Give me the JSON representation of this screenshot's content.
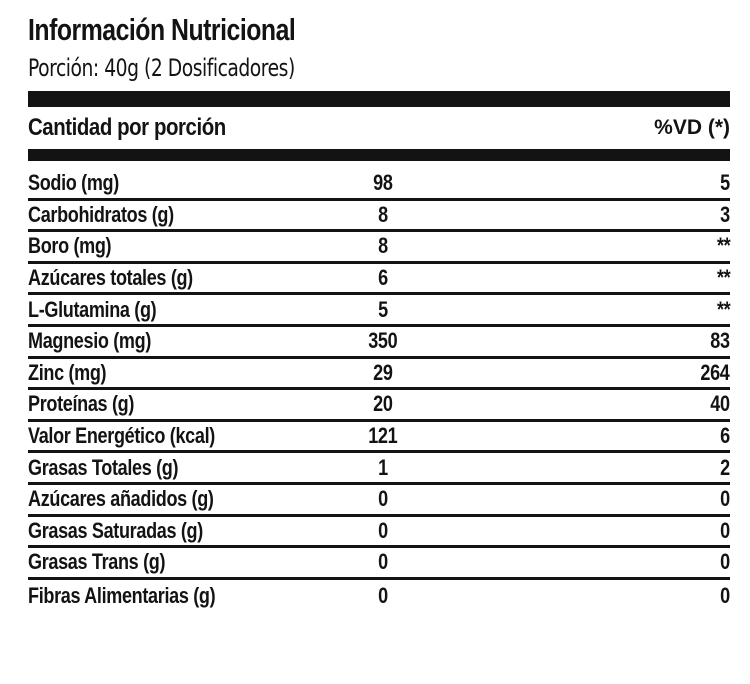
{
  "label": {
    "title": "Información Nutricional",
    "serving": "Porción: 40g (2 Dosificadores)",
    "colors": {
      "ink": "#131313",
      "background": "#ffffff"
    },
    "header": {
      "amount_column": "Cantidad por porción",
      "vd_column": "%VD (*)"
    },
    "rows": [
      {
        "nutrient": "Sodio (mg)",
        "amount": "98",
        "vd": "5"
      },
      {
        "nutrient": "Carbohidratos (g)",
        "amount": "8",
        "vd": "3"
      },
      {
        "nutrient": "Boro (mg)",
        "amount": "8",
        "vd": "**"
      },
      {
        "nutrient": "Azúcares totales (g)",
        "amount": "6",
        "vd": "**"
      },
      {
        "nutrient": "L-Glutamina (g)",
        "amount": "5",
        "vd": "**"
      },
      {
        "nutrient": "Magnesio (mg)",
        "amount": "350",
        "vd": "83"
      },
      {
        "nutrient": "Zinc (mg)",
        "amount": "29",
        "vd": "264"
      },
      {
        "nutrient": "Proteínas (g)",
        "amount": "20",
        "vd": "40"
      },
      {
        "nutrient": "Valor Energético (kcal)",
        "amount": "121",
        "vd": "6"
      },
      {
        "nutrient": "Grasas Totales (g)",
        "amount": "1",
        "vd": "2"
      },
      {
        "nutrient": "Azúcares añadidos (g)",
        "amount": "0",
        "vd": "0"
      },
      {
        "nutrient": "Grasas Saturadas (g)",
        "amount": "0",
        "vd": "0"
      },
      {
        "nutrient": "Grasas Trans (g)",
        "amount": "0",
        "vd": "0"
      },
      {
        "nutrient": "Fibras Alimentarias (g)",
        "amount": "0",
        "vd": "0"
      }
    ]
  }
}
